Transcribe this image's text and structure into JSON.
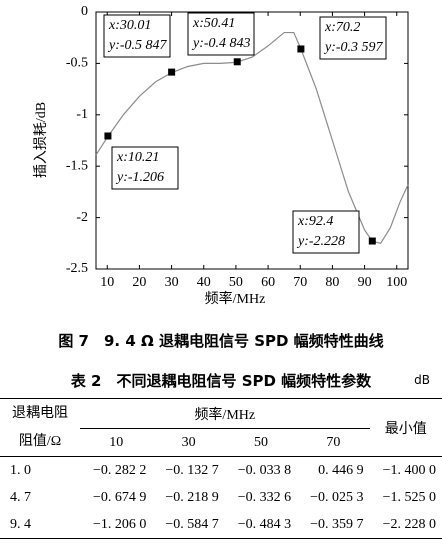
{
  "chart_data": {
    "type": "line",
    "x_label": "频率/MHz",
    "y_label": "插入损耗/dB",
    "xlim": [
      6.5,
      103.5
    ],
    "ylim": [
      -2.5,
      0
    ],
    "xticks": [
      10,
      20,
      30,
      40,
      50,
      60,
      70,
      80,
      90,
      100
    ],
    "yticks": [
      0,
      -0.5,
      -1,
      -1.5,
      -2,
      -2.5
    ],
    "series": [
      {
        "color": "#8c8c8c",
        "x": [
          6.5,
          10,
          15,
          20,
          25,
          30,
          35,
          40,
          45,
          50,
          55,
          60,
          65,
          68,
          70.2,
          75,
          80,
          85,
          90,
          92.4,
          95,
          98,
          101,
          103.5
        ],
        "values": [
          -1.39,
          -1.22,
          -1.0,
          -0.82,
          -0.68,
          -0.59,
          -0.53,
          -0.5,
          -0.5,
          -0.49,
          -0.44,
          -0.33,
          -0.2,
          -0.2,
          -0.36,
          -0.75,
          -1.25,
          -1.75,
          -2.12,
          -2.23,
          -2.25,
          -2.1,
          -1.85,
          -1.68
        ]
      }
    ],
    "marker_color": "#000000",
    "datatips": [
      {
        "x": 10.21,
        "y": -1.206,
        "x_label": "x:10.21",
        "y_label": "y:-1.206"
      },
      {
        "x": 30.01,
        "y": -0.5847,
        "x_label": "x:30.01",
        "y_label": "y:-0.5 847"
      },
      {
        "x": 50.41,
        "y": -0.4843,
        "x_label": "x:50.41",
        "y_label": "y:-0.4 843"
      },
      {
        "x": 70.2,
        "y": -0.3597,
        "x_label": "x:70.2",
        "y_label": "y:-0.3 597"
      },
      {
        "x": 92.4,
        "y": -2.228,
        "x_label": "x:92.4",
        "y_label": "y:-2.228"
      }
    ]
  },
  "figure_caption": "图 7　9. 4 Ω 退耦电阻信号 SPD 幅频特性曲线",
  "table": {
    "title": "表 2　不同退耦电阻信号 SPD 幅频特性参数",
    "unit": "dB",
    "row_header": [
      "退耦电阻",
      "阻值/Ω"
    ],
    "group_header": "频率/MHz",
    "columns": [
      "10",
      "30",
      "50",
      "70"
    ],
    "last_header": "最小值",
    "rows": [
      [
        "1. 0",
        "−0. 282 2",
        "−0. 132 7",
        "−0. 033 8",
        "0. 446 9",
        "−1. 400 0"
      ],
      [
        "4. 7",
        "−0. 674 9",
        "−0. 218 9",
        "−0. 332 6",
        "−0. 025 3",
        "−1. 525 0"
      ],
      [
        "9. 4",
        "−1. 206 0",
        "−0. 584 7",
        "−0. 484 3",
        "−0. 359 7",
        "−2. 228 0"
      ]
    ]
  }
}
